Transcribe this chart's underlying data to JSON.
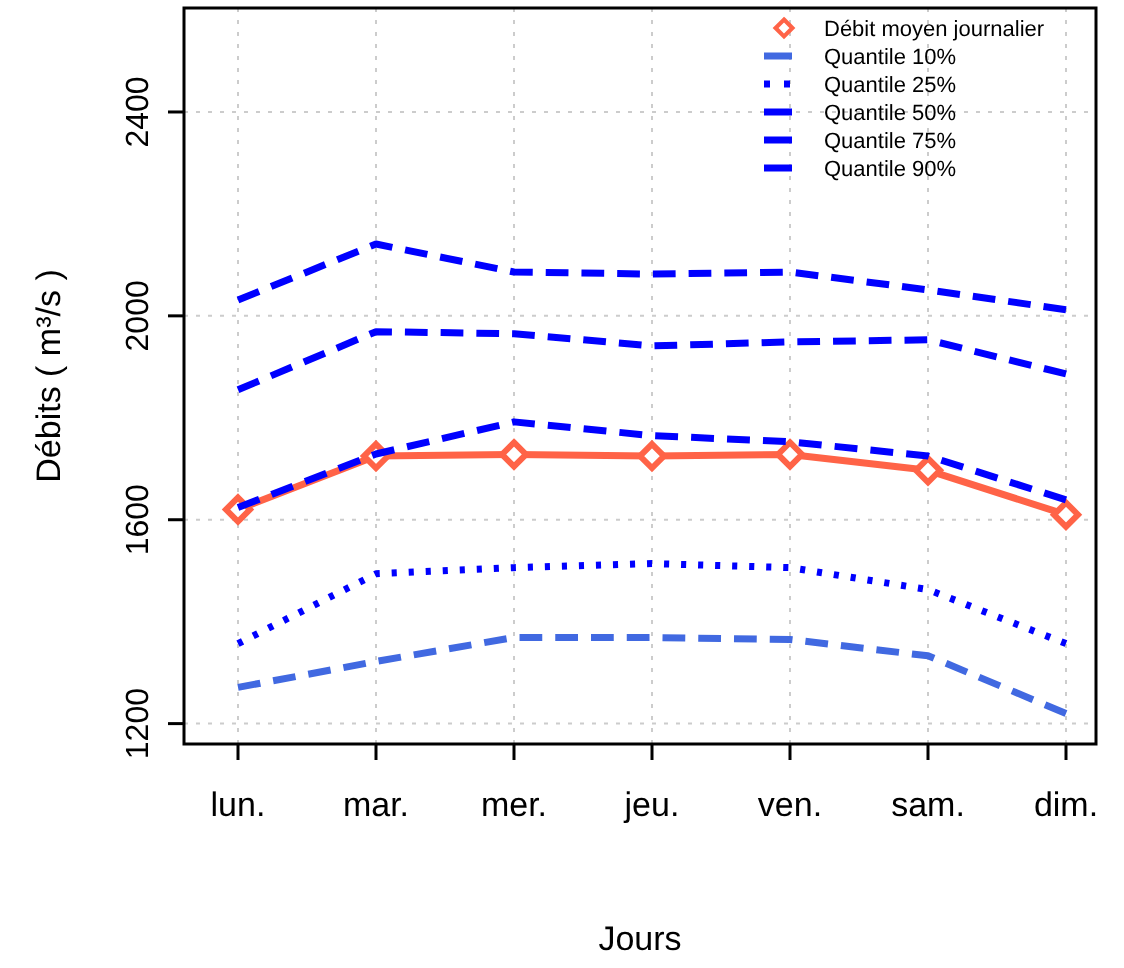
{
  "chart_data": {
    "type": "line",
    "xlabel": "Jours",
    "ylabel": "Débits ( m³/s )",
    "categories": [
      "lun.",
      "mar.",
      "mer.",
      "jeu.",
      "ven.",
      "sam.",
      "dim."
    ],
    "series": [
      {
        "name": "Débit moyen journalier",
        "color": "#ff6347",
        "marker": "diamond",
        "line_style": "solid",
        "values": [
          1620,
          1725,
          1728,
          1725,
          1728,
          1697,
          1610
        ]
      },
      {
        "name": "Quantile 10%",
        "color": "#4169e1",
        "marker": "none",
        "line_style": "dashed",
        "values": [
          1271,
          1322,
          1369,
          1369,
          1365,
          1333,
          1220
        ]
      },
      {
        "name": "Quantile 25%",
        "color": "#0000ff",
        "marker": "none",
        "line_style": "dotted",
        "values": [
          1357,
          1494,
          1506,
          1514,
          1506,
          1463,
          1357
        ]
      },
      {
        "name": "Quantile 50%",
        "color": "#0000ff",
        "marker": "none",
        "line_style": "dashed",
        "values": [
          1624,
          1729,
          1792,
          1765,
          1753,
          1725,
          1639
        ]
      },
      {
        "name": "Quantile 75%",
        "color": "#0000ff",
        "marker": "none",
        "line_style": "dashed",
        "values": [
          1855,
          1969,
          1965,
          1941,
          1949,
          1953,
          1886
        ]
      },
      {
        "name": "Quantile 90%",
        "color": "#0000ff",
        "marker": "none",
        "line_style": "dashed",
        "values": [
          2031,
          2141,
          2086,
          2082,
          2086,
          2051,
          2012
        ]
      }
    ],
    "ylim": [
      1160,
      2604
    ],
    "yticks": [
      1200,
      1600,
      2000,
      2400
    ],
    "grid": true,
    "legend": "top right"
  }
}
